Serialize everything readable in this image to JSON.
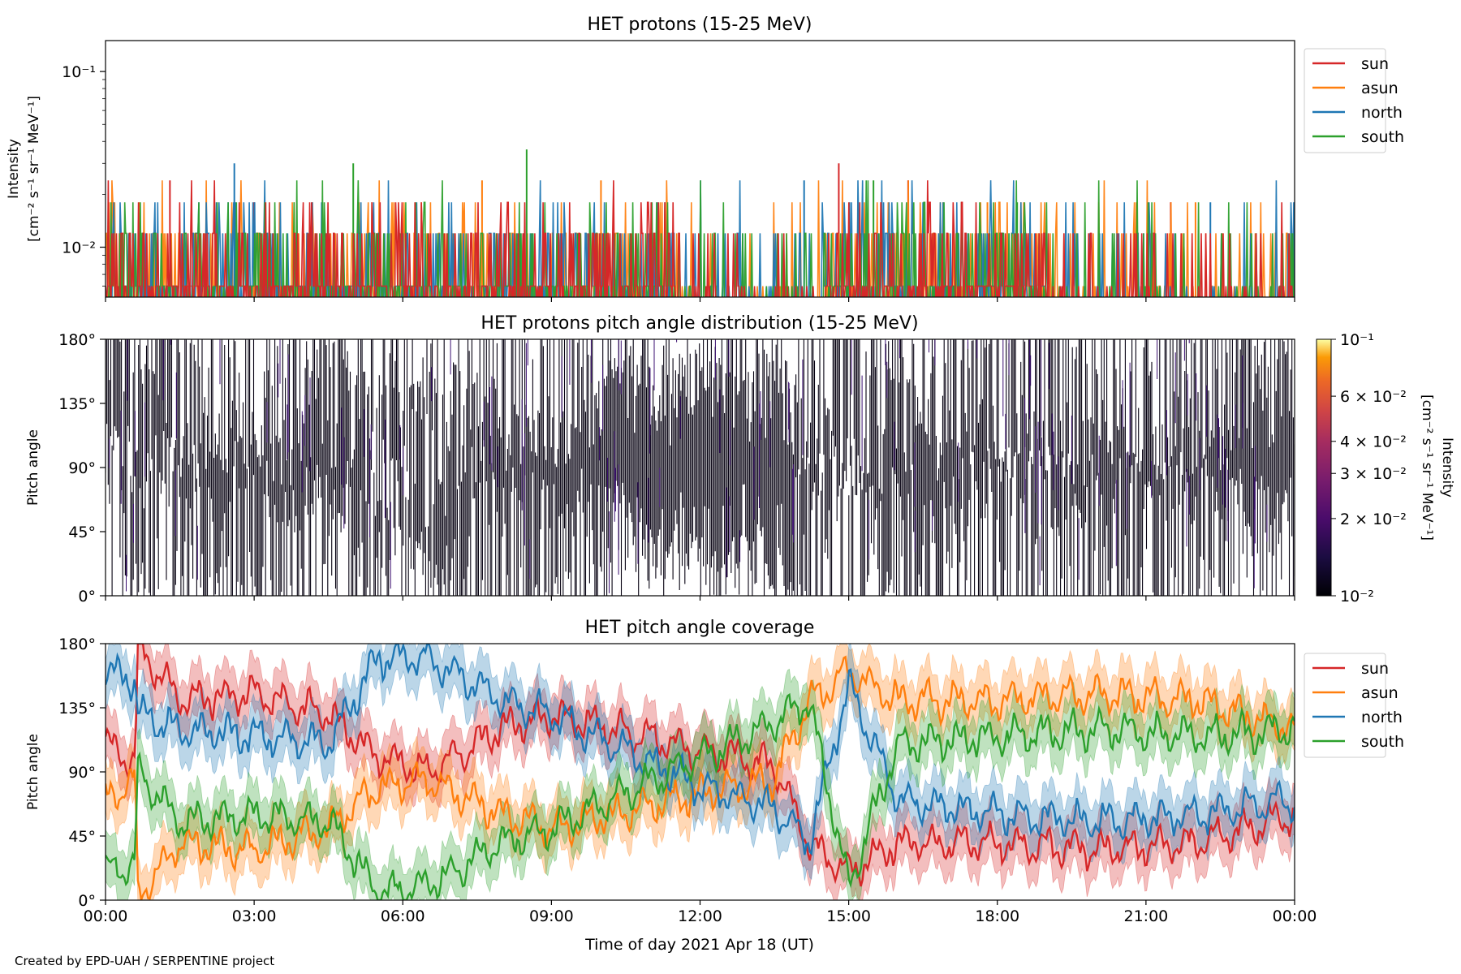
{
  "figure": {
    "credit": "Created by EPD-UAH / SERPENTINE project",
    "xlabel": "Time of day 2021 Apr 18 (UT)",
    "xticks": [
      "00:00",
      "03:00",
      "06:00",
      "09:00",
      "12:00",
      "15:00",
      "18:00",
      "21:00",
      "00:00"
    ],
    "x_range_hours": [
      0,
      24
    ]
  },
  "chart_data": [
    {
      "type": "line",
      "title": "HET protons (15-25 MeV)",
      "ylabel_line1": "Intensity",
      "ylabel_line2": "[cm⁻² s⁻¹ sr⁻¹ MeV⁻¹]",
      "y_scale": "log",
      "ylim": [
        0.0052,
        0.15
      ],
      "ytick_labels": [
        "10⁻¹",
        "10⁻²"
      ],
      "ytick_values": [
        0.1,
        0.01
      ],
      "legend_position": "right-top",
      "series": [
        {
          "name": "sun",
          "color": "#d62728",
          "note_levels": [
            0.006,
            0.012,
            0.018,
            0.024,
            0.03
          ],
          "notable_spikes": [
            [
              1.3,
              0.024
            ],
            [
              3.0,
              0.018
            ],
            [
              14.8,
              0.03
            ],
            [
              16.2,
              0.024
            ],
            [
              21.5,
              0.018
            ]
          ]
        },
        {
          "name": "asun",
          "color": "#ff7f0e",
          "note_levels": [
            0.006,
            0.012,
            0.018,
            0.024
          ],
          "notable_spikes": [
            [
              7.6,
              0.024
            ],
            [
              10.0,
              0.024
            ],
            [
              17.8,
              0.018
            ],
            [
              22.0,
              0.018
            ]
          ]
        },
        {
          "name": "north",
          "color": "#1f77b4",
          "note_levels": [
            0.006,
            0.012,
            0.018,
            0.024,
            0.03
          ],
          "notable_spikes": [
            [
              2.6,
              0.03
            ],
            [
              14.1,
              0.024
            ],
            [
              22.3,
              0.018
            ],
            [
              24.0,
              0.018
            ]
          ]
        },
        {
          "name": "south",
          "color": "#2ca02c",
          "note_levels": [
            0.006,
            0.012,
            0.018,
            0.024,
            0.036
          ],
          "notable_spikes": [
            [
              5.0,
              0.03
            ],
            [
              8.5,
              0.036
            ],
            [
              15.5,
              0.024
            ],
            [
              18.4,
              0.018
            ]
          ]
        }
      ]
    },
    {
      "type": "heatmap",
      "title": "HET protons pitch angle distribution (15-25 MeV)",
      "ylabel": "Pitch angle",
      "ylim": [
        0,
        180
      ],
      "ytick_labels": [
        "0°",
        "45°",
        "90°",
        "135°",
        "180°"
      ],
      "ytick_values": [
        0,
        45,
        90,
        135,
        180
      ],
      "colorbar": {
        "label_line1": "Intensity",
        "label_line2": "[cm⁻² s⁻¹ sr⁻¹ MeV⁻¹]",
        "scale": "log",
        "range": [
          0.01,
          0.1
        ],
        "colormap": "inferno",
        "tick_labels": [
          "10⁻¹",
          "6 × 10⁻²",
          "4 × 10⁻²",
          "3 × 10⁻²",
          "2 × 10⁻²",
          "10⁻²"
        ],
        "tick_values": [
          0.1,
          0.06,
          0.04,
          0.03,
          0.02,
          0.01
        ]
      }
    },
    {
      "type": "line",
      "title": "HET pitch angle coverage",
      "ylabel": "Pitch angle",
      "ylim": [
        0,
        180
      ],
      "ytick_labels": [
        "0°",
        "45°",
        "90°",
        "135°",
        "180°"
      ],
      "ytick_values": [
        0,
        45,
        90,
        135,
        180
      ],
      "legend_position": "right-top",
      "band": "shaded range around each series",
      "series": [
        {
          "name": "sun",
          "color": "#d62728",
          "x": [
            0,
            0.6,
            0.65,
            1.5,
            3,
            4.5,
            5.5,
            6.5,
            8,
            9,
            12,
            13.5,
            14.2,
            15,
            16,
            18,
            20,
            22,
            24
          ],
          "y": [
            110,
            95,
            178,
            140,
            145,
            130,
            100,
            90,
            120,
            130,
            105,
            95,
            40,
            20,
            40,
            40,
            35,
            40,
            60
          ]
        },
        {
          "name": "asun",
          "color": "#ff7f0e",
          "x": [
            0,
            0.6,
            0.65,
            1.5,
            3,
            4.5,
            5.5,
            6.5,
            8,
            9,
            12,
            13.5,
            14.2,
            15,
            16,
            18,
            20,
            22,
            24
          ],
          "y": [
            70,
            85,
            2,
            40,
            35,
            50,
            80,
            85,
            60,
            50,
            75,
            85,
            140,
            160,
            140,
            140,
            145,
            140,
            120
          ]
        },
        {
          "name": "north",
          "color": "#1f77b4",
          "x": [
            0,
            0.6,
            0.65,
            1.5,
            3,
            4.5,
            5.5,
            6.5,
            8,
            9,
            12,
            13.5,
            14.2,
            15,
            16,
            18,
            20,
            22,
            24
          ],
          "y": [
            160,
            155,
            130,
            120,
            115,
            110,
            170,
            170,
            140,
            130,
            80,
            65,
            40,
            150,
            70,
            60,
            55,
            60,
            70
          ]
        },
        {
          "name": "south",
          "color": "#2ca02c",
          "x": [
            0,
            0.6,
            0.65,
            1.5,
            3,
            4.5,
            5.5,
            6.5,
            8,
            9,
            12,
            13.5,
            14.2,
            15,
            16,
            18,
            20,
            22,
            24
          ],
          "y": [
            20,
            25,
            90,
            55,
            60,
            55,
            5,
            10,
            40,
            50,
            100,
            125,
            140,
            10,
            110,
            115,
            120,
            115,
            120
          ]
        }
      ]
    }
  ]
}
